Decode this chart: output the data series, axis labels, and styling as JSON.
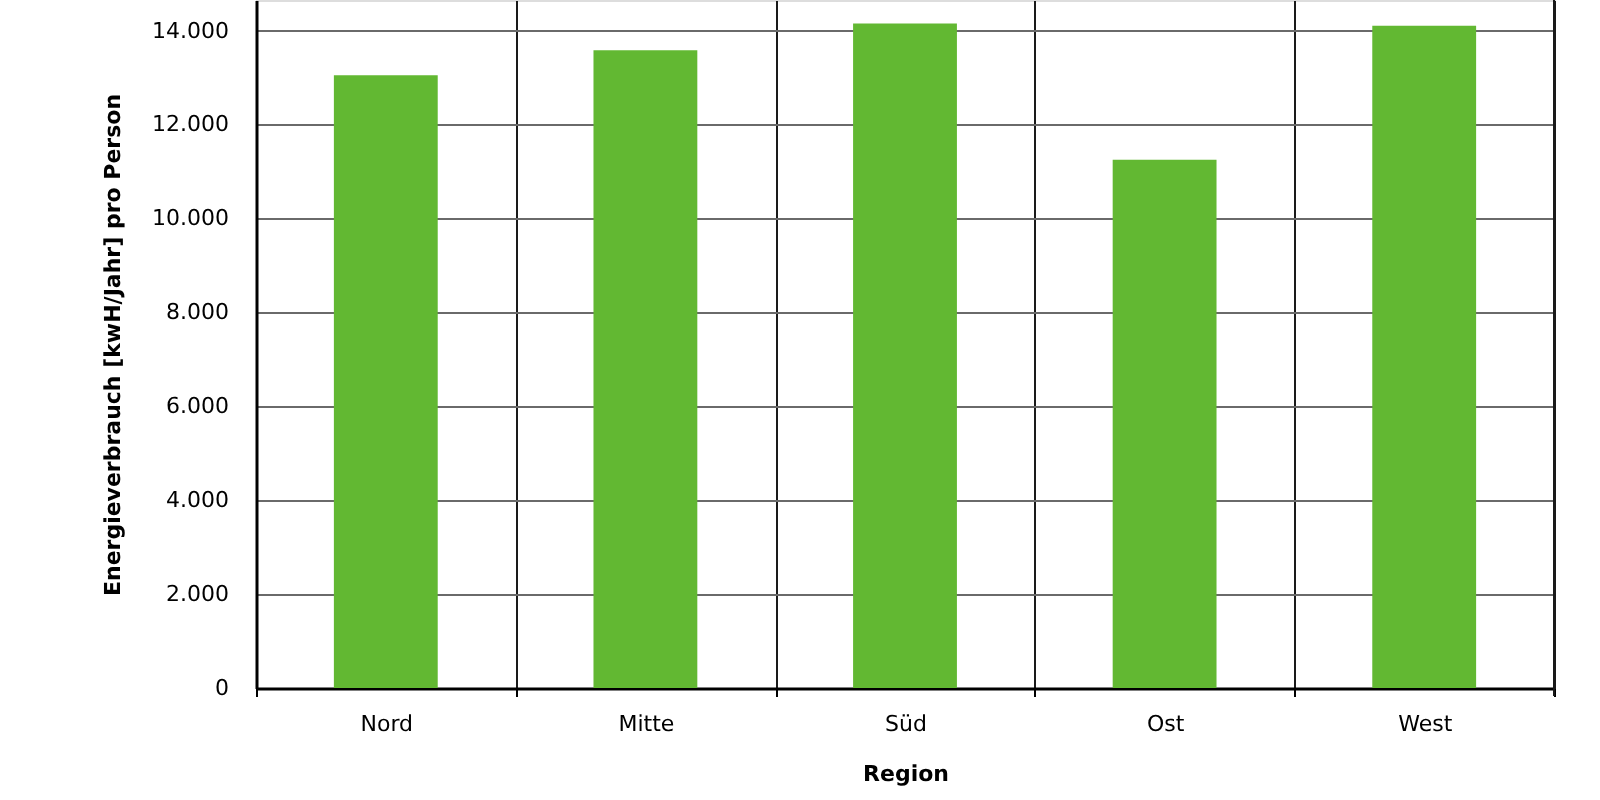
{
  "chart_data": {
    "type": "bar",
    "xlabel": "Region",
    "ylabel": "Energieverbrauch [kwH/Jahr] pro Person",
    "categories": [
      "Nord",
      "Mitte",
      "Süd",
      "Ost",
      "West"
    ],
    "values": [
      13050,
      13580,
      14150,
      11250,
      14100
    ],
    "color": "#62b832",
    "ylim": [
      0,
      14650
    ],
    "yticks": [
      0,
      {
        "value": 2000,
        "label": "2.000"
      },
      {
        "value": 4000,
        "label": "4.000"
      },
      {
        "value": 6000,
        "label": "6.000"
      },
      {
        "value": 8000,
        "label": "8.000"
      },
      {
        "value": 10000,
        "label": "10.000"
      },
      {
        "value": 12000,
        "label": "12.000"
      },
      {
        "value": 14000,
        "label": "14.000"
      }
    ],
    "grid": true
  }
}
